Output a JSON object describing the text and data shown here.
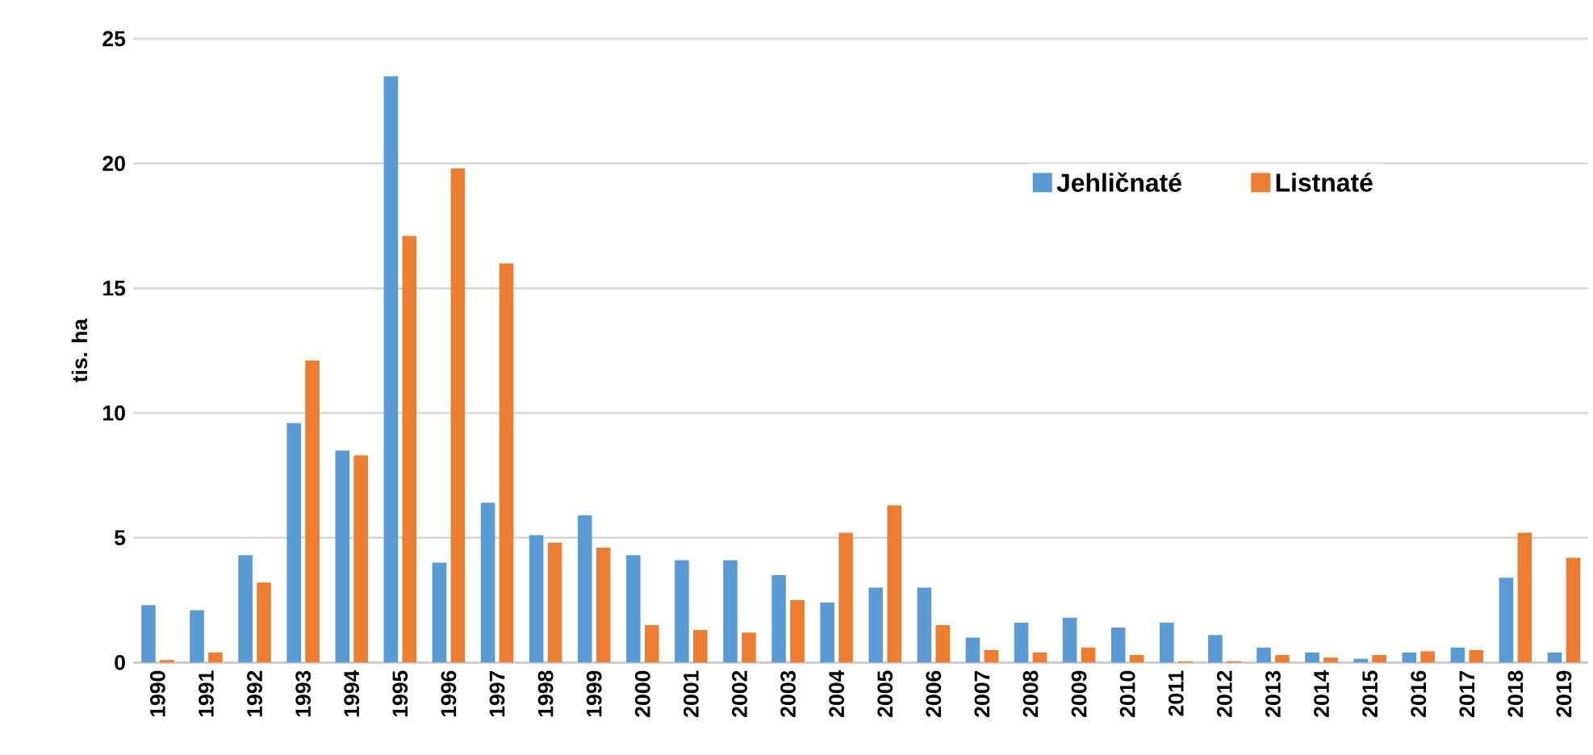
{
  "chart_data": {
    "type": "bar",
    "ylabel": "tis. ha",
    "categories": [
      "1990",
      "1991",
      "1992",
      "1993",
      "1994",
      "1995",
      "1996",
      "1997",
      "1998",
      "1999",
      "2000",
      "2001",
      "2002",
      "2003",
      "2004",
      "2005",
      "2006",
      "2007",
      "2008",
      "2009",
      "2010",
      "2011",
      "2012",
      "2013",
      "2014",
      "2015",
      "2016",
      "2017",
      "2018",
      "2019"
    ],
    "series": [
      {
        "name": "Jehličnaté",
        "color": "#5b9bd5",
        "values": [
          2.3,
          2.1,
          4.3,
          9.6,
          8.5,
          23.5,
          4.0,
          6.4,
          5.1,
          5.9,
          4.3,
          4.1,
          4.1,
          3.5,
          2.4,
          3.0,
          3.0,
          1.0,
          1.6,
          1.8,
          1.4,
          1.6,
          1.1,
          0.6,
          0.4,
          0.15,
          0.4,
          0.6,
          3.4,
          0.4
        ]
      },
      {
        "name": "Listnaté",
        "color": "#ed7d31",
        "values": [
          0.1,
          0.4,
          3.2,
          12.1,
          8.3,
          17.1,
          19.8,
          16.0,
          4.8,
          4.6,
          1.5,
          1.3,
          1.2,
          2.5,
          5.2,
          6.3,
          1.5,
          0.5,
          0.4,
          0.6,
          0.3,
          0.05,
          0.05,
          0.3,
          0.2,
          0.3,
          0.45,
          0.5,
          5.2,
          4.2
        ]
      }
    ],
    "ylim": [
      0,
      25
    ],
    "yticks": [
      0,
      5,
      10,
      15,
      20,
      25
    ],
    "grid": "y",
    "legend": "top right"
  }
}
